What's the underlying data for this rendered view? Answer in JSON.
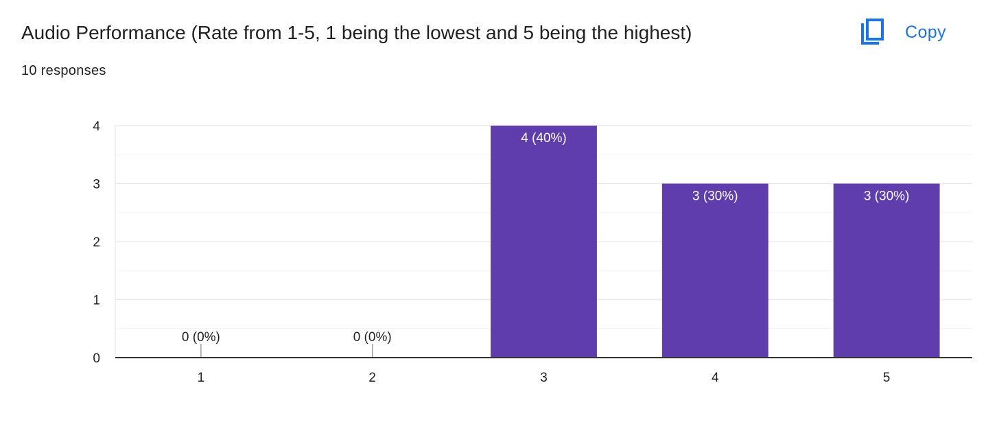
{
  "header": {
    "title": "Audio Performance (Rate from 1-5, 1 being the lowest and 5 being the highest)",
    "responses": "10 responses",
    "copy_label": "Copy",
    "copy_icon": "copy-icon"
  },
  "colors": {
    "bar": "#5f3dad",
    "accent": "#1a73e8",
    "grid": "#ebebeb",
    "axis": "#333333",
    "text": "#202124"
  },
  "chart_data": {
    "type": "bar",
    "categories": [
      "1",
      "2",
      "3",
      "4",
      "5"
    ],
    "values": [
      0,
      0,
      4,
      3,
      3
    ],
    "data_labels": [
      "0 (0%)",
      "0 (0%)",
      "4 (40%)",
      "3 (30%)",
      "3 (30%)"
    ],
    "yticks": [
      0,
      1,
      2,
      3,
      4
    ],
    "ylim": [
      0,
      4
    ],
    "grid": true,
    "xlabel": "",
    "ylabel": ""
  }
}
